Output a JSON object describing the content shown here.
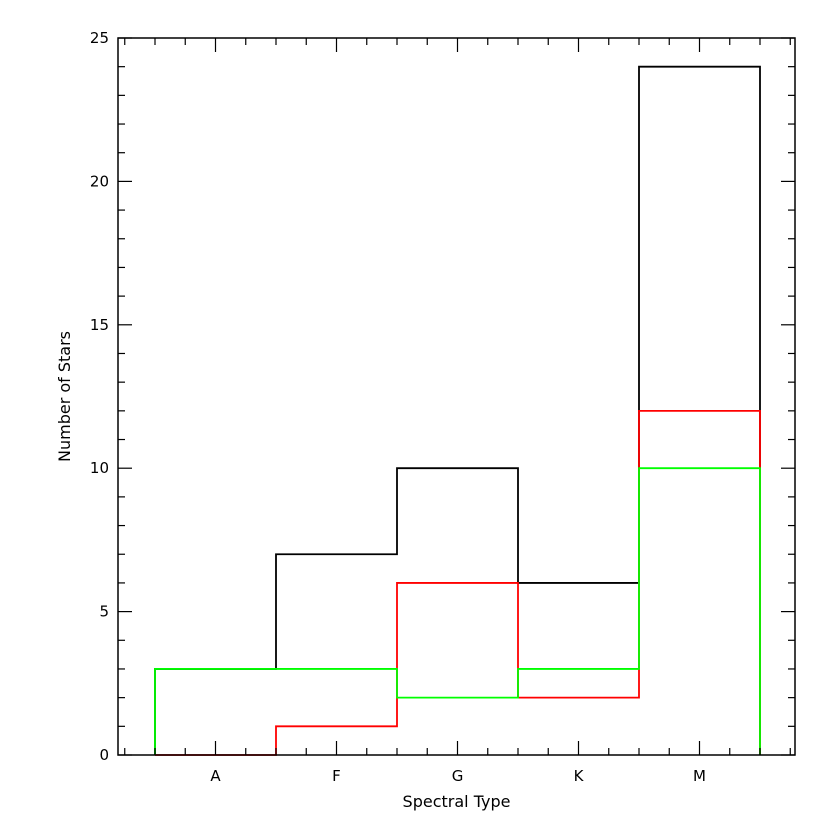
{
  "chart_data": {
    "type": "bar",
    "style": "step-histogram",
    "xlabel": "Spectral Type",
    "ylabel": "Number of Stars",
    "categories": [
      "A",
      "F",
      "G",
      "K",
      "M"
    ],
    "ylim": [
      0,
      25
    ],
    "y_major_ticks": [
      0,
      5,
      10,
      15,
      20,
      25
    ],
    "y_minor_step": 1,
    "x_minor_per_bin": 4,
    "grid": false,
    "legend": "none",
    "series": [
      {
        "color": "#000000",
        "values": [
          3,
          7,
          10,
          6,
          24
        ]
      },
      {
        "color": "#ff0000",
        "values": [
          0,
          1,
          6,
          2,
          12
        ]
      },
      {
        "color": "#00ff00",
        "values": [
          3,
          3,
          2,
          3,
          10
        ]
      }
    ]
  }
}
